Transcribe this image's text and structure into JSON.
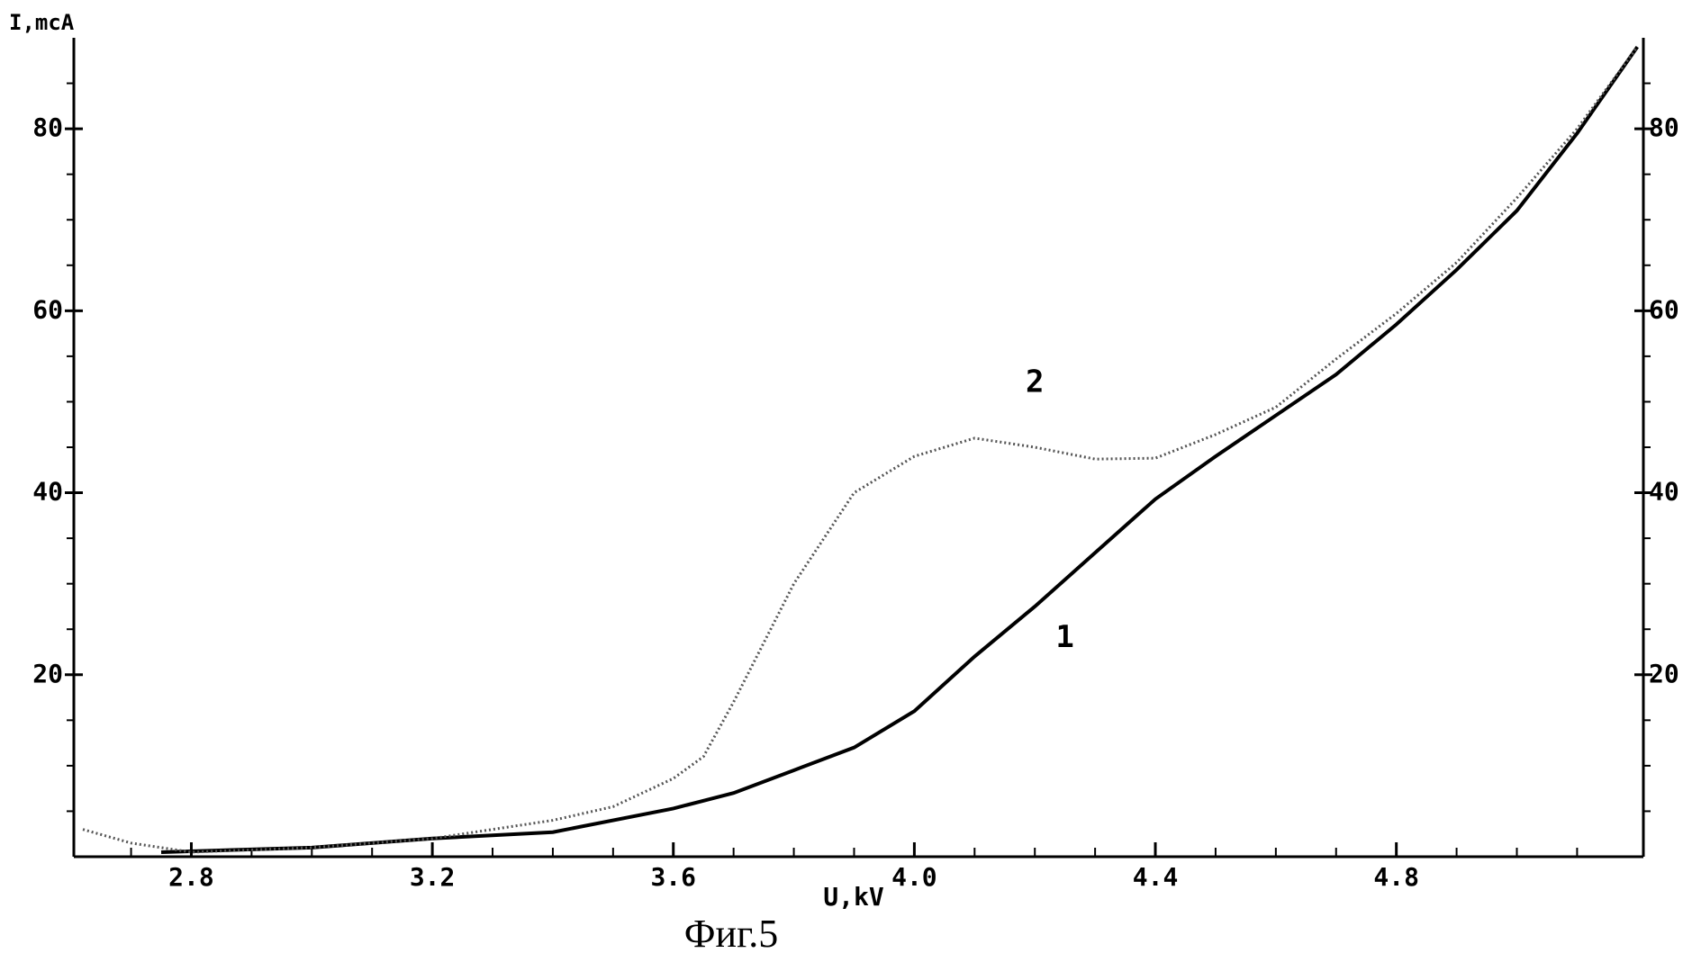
{
  "chart_data": {
    "type": "line",
    "caption": "Фиг.5",
    "xlabel": "U,kV",
    "ylabel": "I,mcA",
    "xlim": [
      2.605,
      5.21
    ],
    "ylim": [
      0,
      90
    ],
    "y2lim": [
      0,
      90
    ],
    "xticks": [
      {
        "value": 2.8,
        "label": "2.8"
      },
      {
        "value": 3.2,
        "label": "3.2"
      },
      {
        "value": 3.6,
        "label": "3.6"
      },
      {
        "value": 4.0,
        "label": "4.0"
      },
      {
        "value": 4.4,
        "label": "4.4"
      },
      {
        "value": 4.8,
        "label": "4.8"
      }
    ],
    "yticks": [
      20,
      40,
      60,
      80
    ],
    "y2ticks": [
      20,
      40,
      60,
      80
    ],
    "xminor": [
      2.7,
      2.9,
      3.0,
      3.1,
      3.3,
      3.4,
      3.5,
      3.7,
      3.8,
      3.9,
      4.1,
      4.2,
      4.3,
      4.5,
      4.6,
      4.7,
      4.9,
      5.0,
      5.1
    ],
    "yminor": [
      5,
      10,
      15,
      25,
      30,
      35,
      45,
      50,
      55,
      65,
      70,
      75,
      85
    ],
    "series": [
      {
        "name": "1",
        "color": "#000000",
        "style": "solid",
        "x": [
          2.75,
          3.0,
          3.2,
          3.4,
          3.6,
          3.7,
          3.8,
          3.9,
          4.0,
          4.1,
          4.2,
          4.3,
          4.4,
          4.5,
          4.6,
          4.7,
          4.8,
          4.9,
          5.0,
          5.1,
          5.2
        ],
        "values": [
          0.5,
          1,
          2,
          2.7,
          5.3,
          7,
          9.5,
          12,
          16,
          22,
          27.5,
          33.4,
          39.3,
          44,
          48.5,
          53,
          58.5,
          64.5,
          71,
          79.5,
          89
        ]
      },
      {
        "name": "2",
        "color": "#555555",
        "style": "dotted",
        "x": [
          2.62,
          2.7,
          2.8,
          3.0,
          3.2,
          3.4,
          3.5,
          3.6,
          3.65,
          3.7,
          3.8,
          3.9,
          4.0,
          4.1,
          4.2,
          4.3,
          4.4,
          4.5,
          4.6,
          4.7,
          4.8,
          4.9,
          5.0,
          5.1,
          5.2
        ],
        "values": [
          3,
          1.5,
          0.5,
          1,
          2,
          4,
          5.5,
          8.6,
          11,
          17,
          30,
          40,
          44,
          46,
          45,
          43.7,
          43.8,
          46.4,
          49.4,
          54.7,
          59.7,
          65.3,
          72.4,
          80,
          89
        ]
      }
    ],
    "annotations": [
      {
        "text": "2",
        "x": 4.2,
        "y": 52
      },
      {
        "text": "1",
        "x": 4.25,
        "y": 24
      }
    ]
  }
}
